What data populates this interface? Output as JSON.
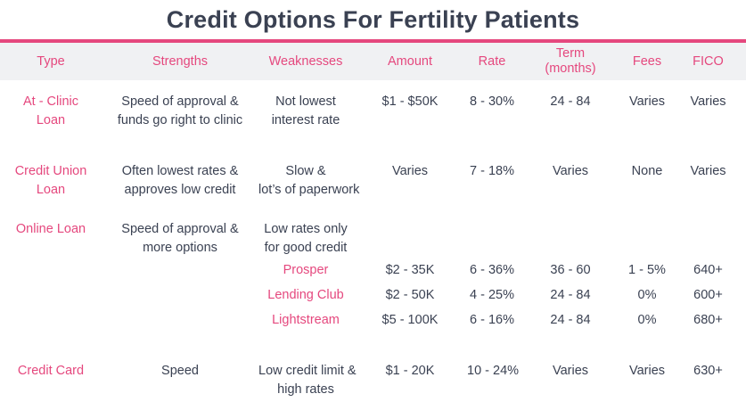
{
  "colors": {
    "accent": "#e5487e",
    "header_bg": "#f0f1f3",
    "text_dark": "#3a4152"
  },
  "chart_data": {
    "type": "table",
    "title": "Credit Options For Fertility Patients",
    "columns": [
      "Type",
      "Strengths",
      "Weaknesses",
      "Amount",
      "Rate",
      "Term\n(months)",
      "Fees",
      "FICO"
    ],
    "rows": [
      {
        "type": "At - Clinic\nLoan",
        "strengths": "Speed of approval &\nfunds go right to clinic",
        "weaknesses": "Not lowest\ninterest rate",
        "amount": "$1 - $50K",
        "rate": "8 - 30%",
        "term": "24 - 84",
        "fees": "Varies",
        "fico": "Varies"
      },
      {
        "type": "Credit Union\nLoan",
        "strengths": "Often lowest rates &\napproves low credit",
        "weaknesses": "Slow &\nlot’s of paperwork",
        "amount": "Varies",
        "rate": "7 - 18%",
        "term": "Varies",
        "fees": "None",
        "fico": "Varies"
      },
      {
        "type": "Online Loan",
        "strengths": "Speed of approval &\nmore options",
        "weaknesses": "Low rates only\nfor good credit"
      },
      {
        "product": "Prosper",
        "amount": "$2 - 35K",
        "rate": "6 - 36%",
        "term": "36 - 60",
        "fees": "1 - 5%",
        "fico": "640+"
      },
      {
        "product": "Lending Club",
        "amount": "$2 - 50K",
        "rate": "4 - 25%",
        "term": "24 - 84",
        "fees": "0%",
        "fico": "600+"
      },
      {
        "product": "Lightstream",
        "amount": "$5 - 100K",
        "rate": "6 - 16%",
        "term": "24 - 84",
        "fees": "0%",
        "fico": "680+"
      },
      {
        "type": "Credit Card",
        "strengths": "Speed",
        "weaknesses": "Low credit limit &\nhigh rates",
        "amount": "$1 - 20K",
        "rate": "10 - 24%",
        "term": "Varies",
        "fees": "Varies",
        "fico": "630+"
      }
    ]
  }
}
